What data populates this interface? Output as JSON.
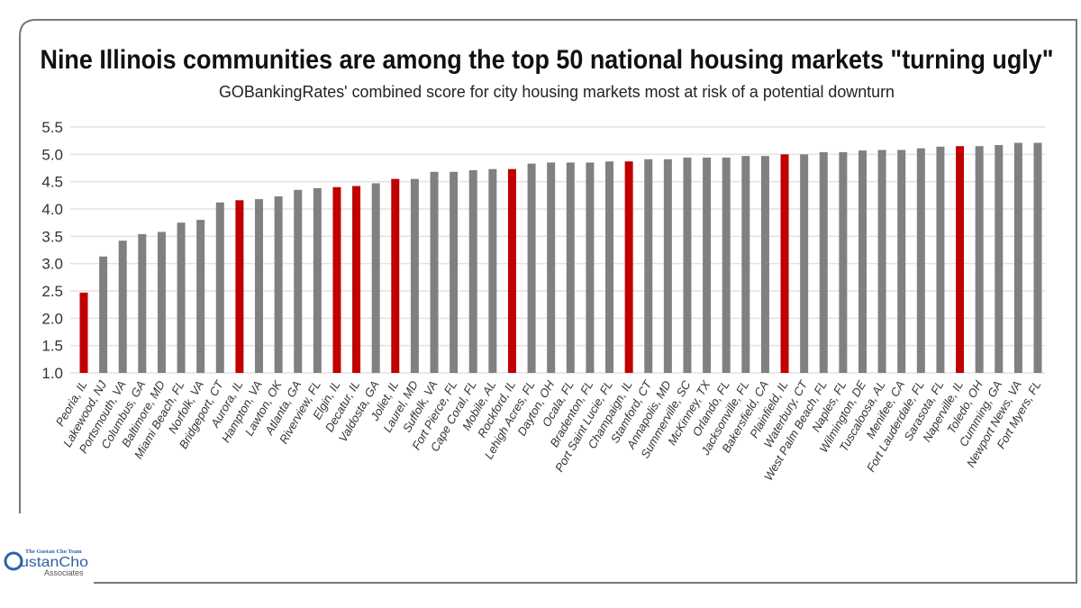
{
  "chart_data": {
    "type": "bar",
    "title": "Nine Illinois communities are among the top 50 national housing markets \"turning ugly\"",
    "subtitle": "GOBankingRates' combined score for city housing markets most at risk of a potential downturn",
    "xlabel": "",
    "ylabel": "",
    "ylim": [
      1.0,
      5.5
    ],
    "yticks": [
      "1.0",
      "1.5",
      "2.0",
      "2.5",
      "3.0",
      "3.5",
      "4.0",
      "4.5",
      "5.0",
      "5.5"
    ],
    "grid": true,
    "legend": "none",
    "colors": {
      "illinois": "#c00000",
      "other": "#808080"
    },
    "categories": [
      "Peoria, IL",
      "Lakewood, NJ",
      "Portsmouth, VA",
      "Columbus, GA",
      "Baltimore, MD",
      "Miami Beach, FL",
      "Norfolk, VA",
      "Bridgeport, CT",
      "Aurora, IL",
      "Hampton, VA",
      "Lawton, OK",
      "Atlanta, GA",
      "Riverview, FL",
      "Elgin, IL",
      "Decatur, IL",
      "Valdosta, GA",
      "Joliet, IL",
      "Laurel, MD",
      "Suffolk, VA",
      "Fort Pierce, FL",
      "Cape Coral, FL",
      "Mobile, AL",
      "Rockford, IL",
      "Lehigh Acres, FL",
      "Dayton, OH",
      "Ocala, FL",
      "Bradenton, FL",
      "Port Saint Lucie, FL",
      "Champaign, IL",
      "Stamford, CT",
      "Annapolis, MD",
      "Summerville, SC",
      "McKinney, TX",
      "Orlando, FL",
      "Jacksonville, FL",
      "Bakersfield, CA",
      "Plainfield, IL",
      "Waterbury, CT",
      "West Palm Beach, FL",
      "Naples, FL",
      "Wilmington, DE",
      "Tuscaloosa, AL",
      "Menifee, CA",
      "Fort Lauderdale, FL",
      "Sarasota, FL",
      "Naperville, IL",
      "Toledo, OH",
      "Cumming, GA",
      "Newport News, VA",
      "Fort Myers, FL"
    ],
    "values": [
      2.47,
      3.13,
      3.42,
      3.54,
      3.58,
      3.75,
      3.8,
      4.12,
      4.16,
      4.18,
      4.23,
      4.35,
      4.38,
      4.4,
      4.42,
      4.47,
      4.55,
      4.55,
      4.68,
      4.68,
      4.71,
      4.73,
      4.73,
      4.83,
      4.85,
      4.85,
      4.85,
      4.87,
      4.87,
      4.91,
      4.91,
      4.94,
      4.94,
      4.94,
      4.97,
      4.97,
      5.0,
      5.0,
      5.04,
      5.04,
      5.07,
      5.08,
      5.08,
      5.11,
      5.14,
      5.15,
      5.15,
      5.17,
      5.21,
      5.21
    ]
  },
  "logo": {
    "tagline": "The Gustan Cho Team",
    "name": "GustanCho",
    "suffix": "Associates"
  }
}
